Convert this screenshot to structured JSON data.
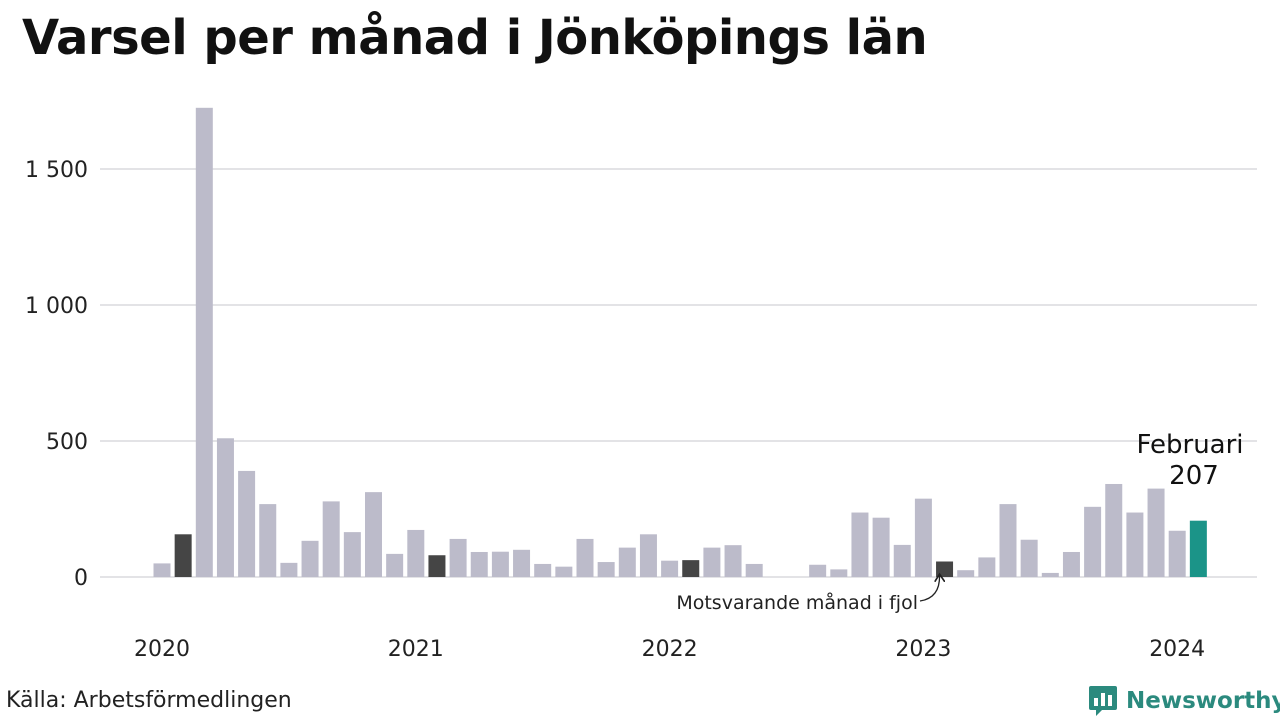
{
  "title": "Varsel per månad i Jönköpings län",
  "source": "Källa: Arbetsförmedlingen",
  "brand": {
    "name": "Newsworthy",
    "icon": "newsworthy-logo-icon"
  },
  "colors": {
    "bar": "#bcbbca",
    "comparison": "#454545",
    "highlight": "#1b9488",
    "grid": "#e3e3e6",
    "text": "#222222",
    "brand": "#2b8a7e"
  },
  "chart_data": {
    "type": "bar",
    "title": "Varsel per månad i Jönköpings län",
    "ylim": [
      0,
      1750
    ],
    "yticks": [
      0,
      500,
      1000,
      1500
    ],
    "ytick_labels": [
      "0",
      "500",
      "1 000",
      "1 500"
    ],
    "grid": true,
    "x_start": "2020-01",
    "x_ticks": [
      {
        "label": "2020",
        "month": "2020-01"
      },
      {
        "label": "2021",
        "month": "2021-01"
      },
      {
        "label": "2022",
        "month": "2022-01"
      },
      {
        "label": "2023",
        "month": "2023-01"
      },
      {
        "label": "2024",
        "month": "2024-01"
      }
    ],
    "months": [
      "2020-01",
      "2020-02",
      "2020-03",
      "2020-04",
      "2020-05",
      "2020-06",
      "2020-07",
      "2020-08",
      "2020-09",
      "2020-10",
      "2020-11",
      "2020-12",
      "2021-01",
      "2021-02",
      "2021-03",
      "2021-04",
      "2021-05",
      "2021-06",
      "2021-07",
      "2021-08",
      "2021-09",
      "2021-10",
      "2021-11",
      "2021-12",
      "2022-01",
      "2022-02",
      "2022-03",
      "2022-04",
      "2022-05",
      "2022-06",
      "2022-07",
      "2022-08",
      "2022-09",
      "2022-10",
      "2022-11",
      "2022-12",
      "2023-01",
      "2023-02",
      "2023-03",
      "2023-04",
      "2023-05",
      "2023-06",
      "2023-07",
      "2023-08",
      "2023-09",
      "2023-10",
      "2023-11",
      "2023-12",
      "2024-01",
      "2024-02"
    ],
    "values": [
      50,
      157,
      1725,
      510,
      390,
      268,
      52,
      133,
      278,
      165,
      312,
      85,
      173,
      80,
      140,
      92,
      93,
      100,
      48,
      38,
      140,
      55,
      108,
      157,
      60,
      62,
      108,
      117,
      48,
      0,
      0,
      45,
      28,
      237,
      218,
      118,
      288,
      57,
      25,
      72,
      268,
      137,
      15,
      92,
      258,
      342,
      237,
      325,
      170,
      207
    ],
    "comparison_months": [
      "2020-02",
      "2021-02",
      "2022-02",
      "2023-02"
    ],
    "highlight_month": "2024-02",
    "highlight_label": "Februari",
    "highlight_value_label": "207",
    "annotation": "Motsvarande månad i fjol"
  }
}
